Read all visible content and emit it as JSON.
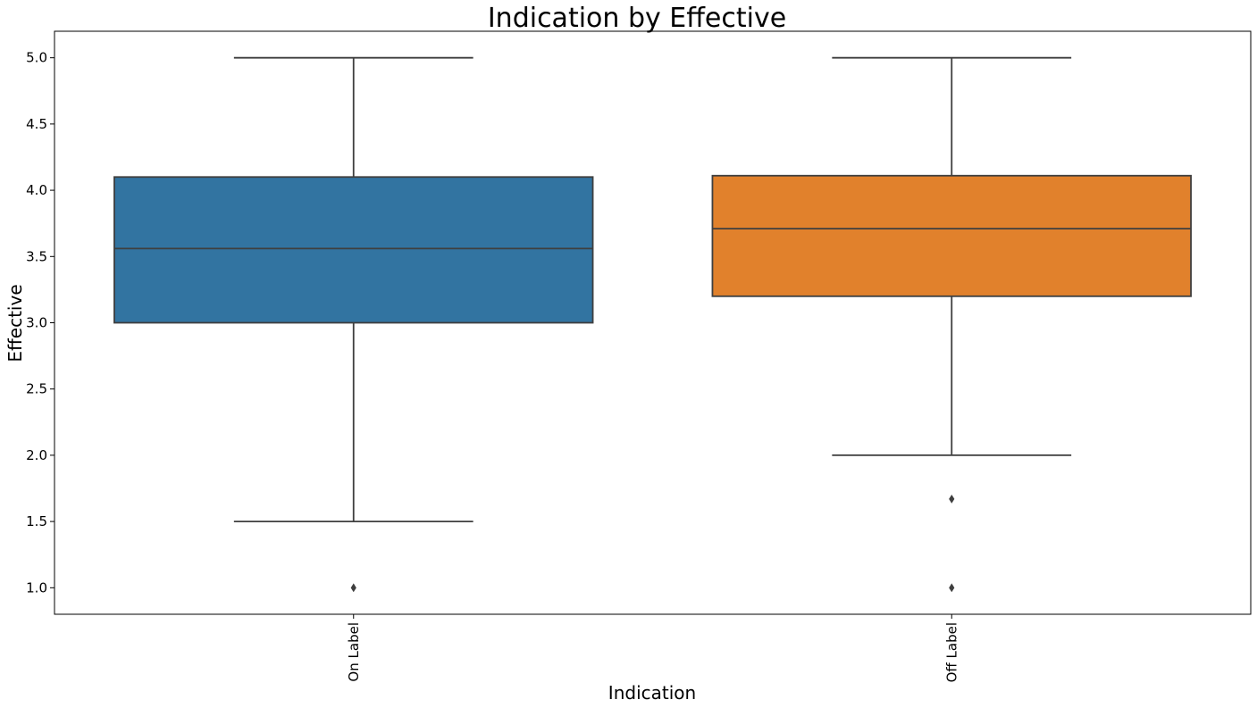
{
  "chart_data": {
    "type": "box",
    "title": "Indication by Effective",
    "xlabel": "Indication",
    "ylabel": "Effective",
    "ylim": [
      0.8,
      5.2
    ],
    "yticks": [
      1.0,
      1.5,
      2.0,
      2.5,
      3.0,
      3.5,
      4.0,
      4.5,
      5.0
    ],
    "ytick_labels": [
      "1.0",
      "1.5",
      "2.0",
      "2.5",
      "3.0",
      "3.5",
      "4.0",
      "4.5",
      "5.0"
    ],
    "categories": [
      "On Label",
      "Off Label"
    ],
    "grid": false,
    "boxes": [
      {
        "category": "On Label",
        "whisker_low": 1.5,
        "q1": 3.0,
        "median": 3.56,
        "q3": 4.1,
        "whisker_high": 5.0,
        "outliers": [
          1.0
        ],
        "color": "#3274a1"
      },
      {
        "category": "Off Label",
        "whisker_low": 2.0,
        "q1": 3.2,
        "median": 3.71,
        "q3": 4.11,
        "whisker_high": 5.0,
        "outliers": [
          1.67,
          1.0
        ],
        "color": "#e1812c"
      }
    ]
  }
}
